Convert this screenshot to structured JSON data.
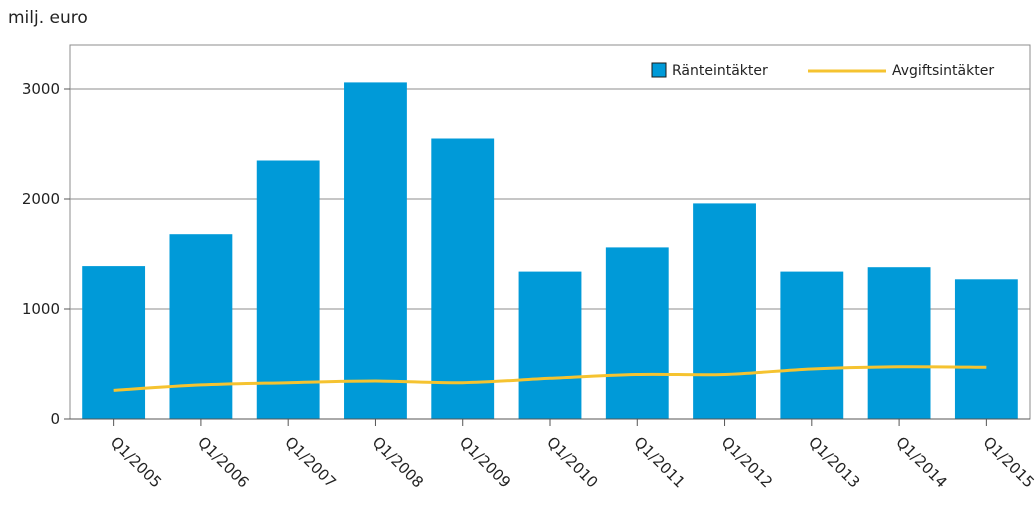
{
  "chart_data": {
    "type": "bar",
    "unit_label": "milj. euro",
    "categories": [
      "Q1/2005",
      "Q1/2006",
      "Q1/2007",
      "Q1/2008",
      "Q1/2009",
      "Q1/2010",
      "Q1/2011",
      "Q1/2012",
      "Q1/2013",
      "Q1/2014",
      "Q1/2015"
    ],
    "series": [
      {
        "name": "Ränteintäkter",
        "type": "bar",
        "color": "#009ad8",
        "values": [
          1390,
          1680,
          2350,
          3060,
          2550,
          1340,
          1560,
          1960,
          1340,
          1380,
          1270
        ]
      },
      {
        "name": "Avgiftsintäkter",
        "type": "line",
        "color": "#f5c330",
        "values": [
          260,
          310,
          330,
          345,
          330,
          370,
          405,
          405,
          455,
          475,
          470
        ]
      }
    ],
    "y_ticks": [
      0,
      1000,
      2000,
      3000
    ],
    "ylim": [
      0,
      3400
    ],
    "grid": true,
    "legend_position": "top-right"
  }
}
